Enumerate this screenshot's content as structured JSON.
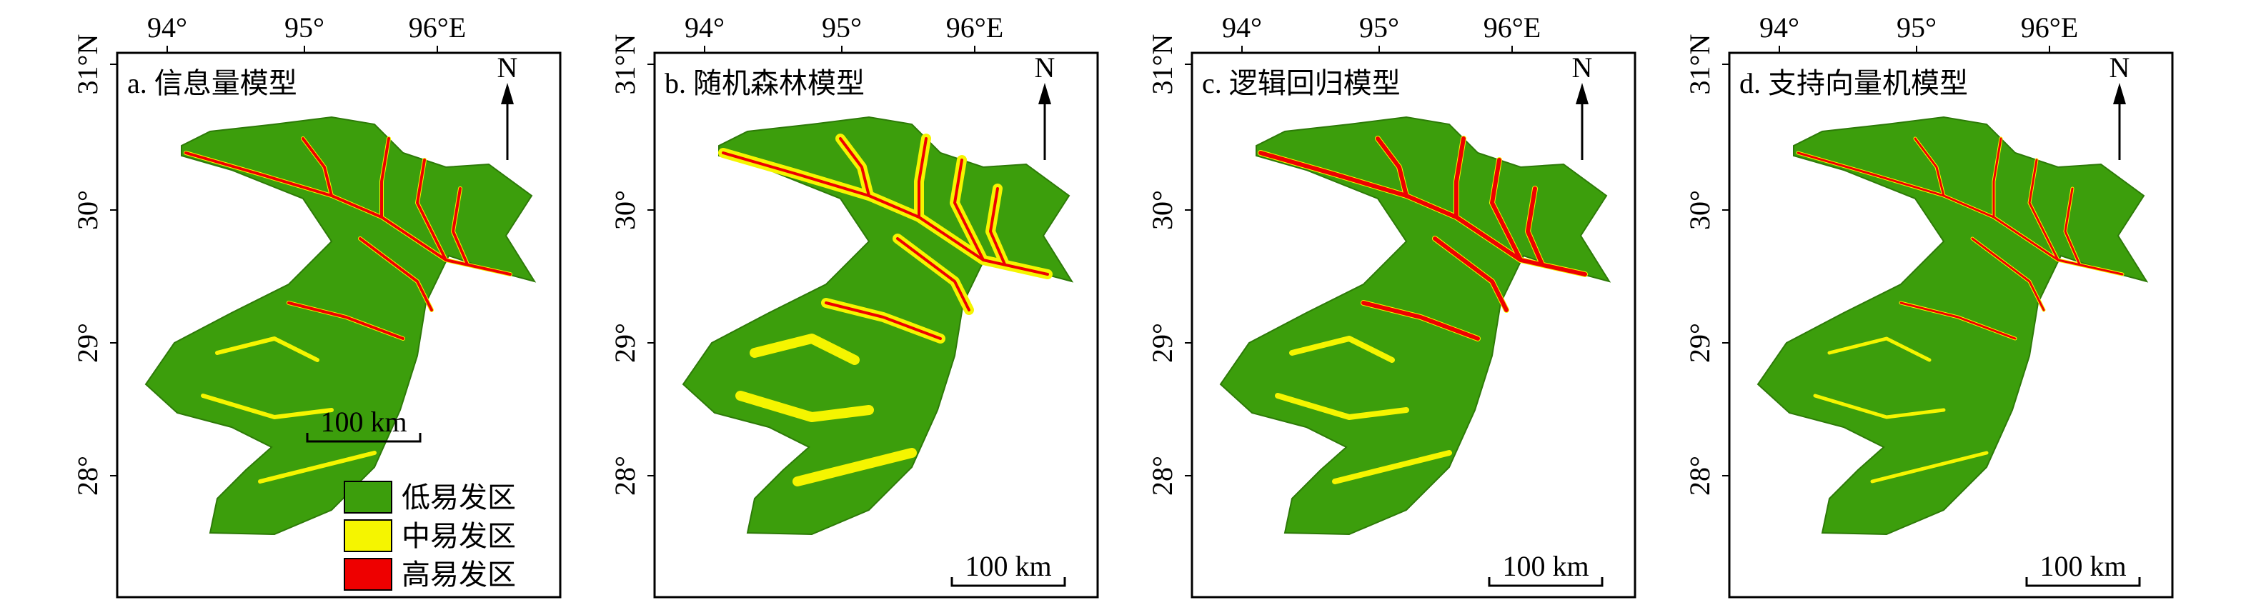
{
  "panels": [
    {
      "title": "a. 信息量模型",
      "north": "N",
      "scale_bar": "100 km"
    },
    {
      "title": "b. 随机森林模型",
      "north": "N",
      "scale_bar": "100 km"
    },
    {
      "title": "c. 逻辑回归模型",
      "north": "N",
      "scale_bar": "100 km"
    },
    {
      "title": "d. 支持向量机模型",
      "north": "N",
      "scale_bar": "100 km"
    }
  ],
  "lon_ticks": [
    "94°",
    "95°",
    "96°E"
  ],
  "lat_ticks": [
    "31°N",
    "30°",
    "29°",
    "28°"
  ],
  "legend": [
    {
      "label": "低易发区",
      "color": "#3c9e0c"
    },
    {
      "label": "中易发区",
      "color": "#f5f500"
    },
    {
      "label": "高易发区",
      "color": "#ee0000"
    }
  ]
}
